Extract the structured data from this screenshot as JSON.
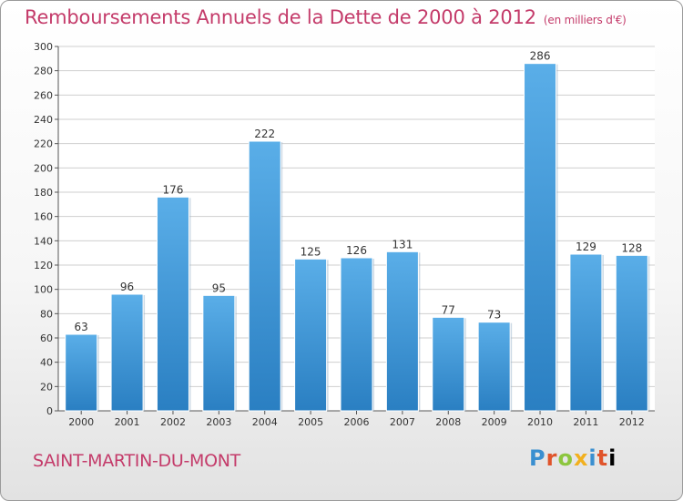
{
  "header": {
    "title": "Remboursements Annuels de la Dette de 2000 à 2012",
    "unit": "(en milliers d'€)"
  },
  "footer": {
    "city": "SAINT-MARTIN-DU-MONT",
    "logo": "Proxiti"
  },
  "colors": {
    "title": "#c43b6a",
    "bar_top": "#5aaee8",
    "bar_bottom": "#2a7fc2",
    "grid": "#cfcfcf"
  },
  "chart_data": {
    "type": "bar",
    "title": "Remboursements Annuels de la Dette de 2000 à 2012",
    "xlabel": "",
    "ylabel": "",
    "categories": [
      "2000",
      "2001",
      "2002",
      "2003",
      "2004",
      "2005",
      "2006",
      "2007",
      "2008",
      "2009",
      "2010",
      "2011",
      "2012"
    ],
    "values": [
      63,
      96,
      176,
      95,
      222,
      125,
      126,
      131,
      77,
      73,
      286,
      129,
      128
    ],
    "ylim": [
      0,
      300
    ],
    "yticks": [
      0,
      20,
      40,
      60,
      80,
      100,
      120,
      140,
      160,
      180,
      200,
      220,
      240,
      260,
      280,
      300
    ],
    "grid": true
  }
}
